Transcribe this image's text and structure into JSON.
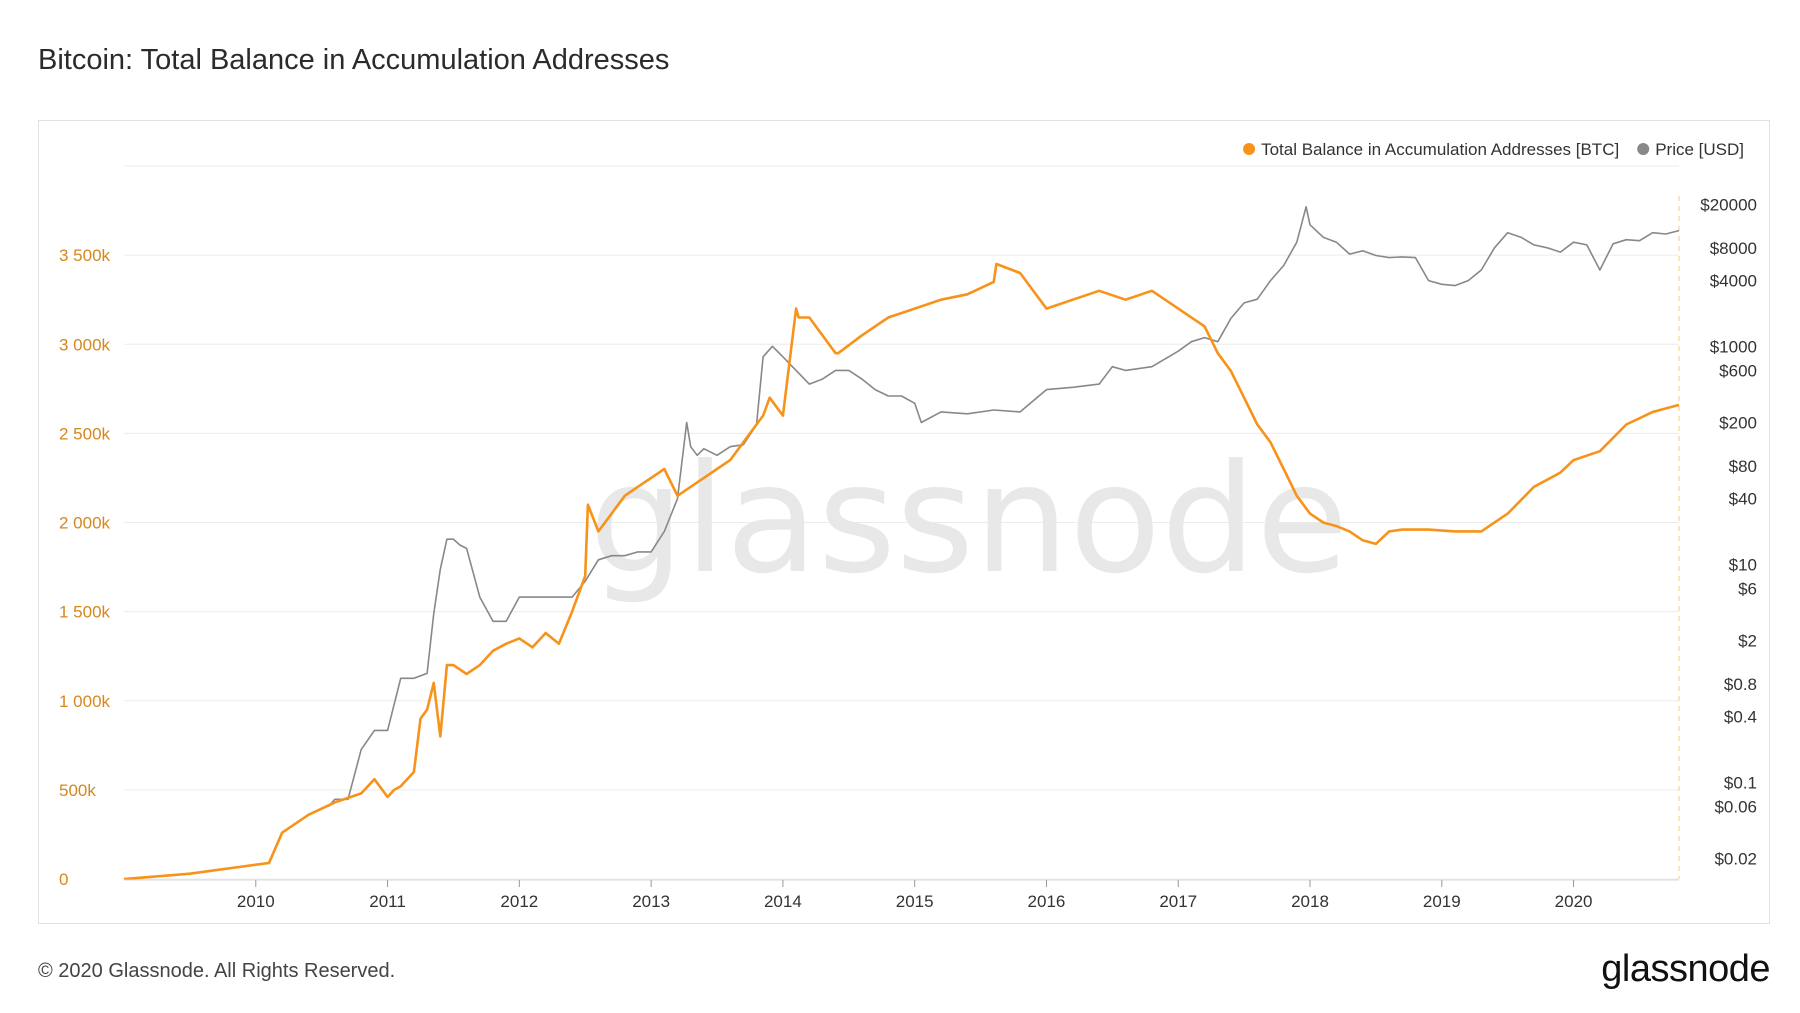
{
  "title": "Bitcoin: Total Balance in Accumulation Addresses",
  "footer": {
    "copyright": "© 2020 Glassnode. All Rights Reserved.",
    "brand": "glassnode"
  },
  "watermark": "glassnode",
  "colors": {
    "balance": "#f7931a",
    "price": "#888888",
    "left_axis": "#d4881e",
    "grid": "#ececec"
  },
  "chart_data": {
    "type": "line",
    "legend": [
      {
        "name": "Total Balance in Accumulation Addresses [BTC]",
        "color": "#f7931a"
      },
      {
        "name": "Price [USD]",
        "color": "#888888"
      }
    ],
    "legend_position": "top-right",
    "grid": true,
    "y_left": {
      "ticks": [
        0,
        500000,
        1000000,
        1500000,
        2000000,
        2500000,
        3000000,
        3500000
      ],
      "tick_labels": [
        "0",
        "500k",
        "1 000k",
        "1 500k",
        "2 000k",
        "2 500k",
        "3 000k",
        "3 500k"
      ],
      "range": [
        0,
        4000000
      ]
    },
    "y_right": {
      "scale": "log",
      "ticks": [
        0.02,
        0.06,
        0.1,
        0.4,
        0.8,
        2,
        6,
        10,
        40,
        80,
        200,
        600,
        1000,
        4000,
        8000,
        20000
      ],
      "tick_labels": [
        "$0.02",
        "$0.06",
        "$0.1",
        "$0.4",
        "$0.8",
        "$2",
        "$6",
        "$10",
        "$40",
        "$80",
        "$200",
        "$600",
        "$1000",
        "$4000",
        "$8000",
        "$20000"
      ]
    },
    "x_axis": {
      "tick_labels": [
        "2010",
        "2011",
        "2012",
        "2013",
        "2014",
        "2015",
        "2016",
        "2017",
        "2018",
        "2019",
        "2020"
      ],
      "range": [
        2009.0,
        2020.8
      ]
    },
    "series": [
      {
        "name": "Total Balance in Accumulation Addresses [BTC]",
        "axis": "left",
        "x": [
          2009.0,
          2009.5,
          2009.9,
          2010.1,
          2010.2,
          2010.4,
          2010.6,
          2010.8,
          2010.9,
          2011.0,
          2011.05,
          2011.1,
          2011.2,
          2011.25,
          2011.3,
          2011.35,
          2011.4,
          2011.45,
          2011.5,
          2011.6,
          2011.7,
          2011.8,
          2011.9,
          2012.0,
          2012.1,
          2012.2,
          2012.3,
          2012.4,
          2012.5,
          2012.52,
          2012.6,
          2012.7,
          2012.8,
          2012.9,
          2013.0,
          2013.1,
          2013.2,
          2013.3,
          2013.4,
          2013.5,
          2013.6,
          2013.7,
          2013.8,
          2013.85,
          2013.9,
          2014.0,
          2014.1,
          2014.12,
          2014.2,
          2014.4,
          2014.42,
          2014.6,
          2014.8,
          2015.0,
          2015.2,
          2015.4,
          2015.6,
          2015.62,
          2015.8,
          2016.0,
          2016.2,
          2016.4,
          2016.6,
          2016.8,
          2017.0,
          2017.2,
          2017.3,
          2017.4,
          2017.5,
          2017.6,
          2017.7,
          2017.8,
          2017.9,
          2018.0,
          2018.1,
          2018.2,
          2018.3,
          2018.4,
          2018.5,
          2018.6,
          2018.7,
          2018.9,
          2019.1,
          2019.3,
          2019.5,
          2019.7,
          2019.9,
          2020.0,
          2020.2,
          2020.4,
          2020.6,
          2020.8
        ],
        "values": [
          0,
          30000,
          70000,
          90000,
          260000,
          360000,
          430000,
          480000,
          560000,
          460000,
          500000,
          520000,
          600000,
          900000,
          950000,
          1100000,
          800000,
          1200000,
          1200000,
          1150000,
          1200000,
          1280000,
          1320000,
          1350000,
          1300000,
          1380000,
          1320000,
          1500000,
          1700000,
          2100000,
          1950000,
          2050000,
          2150000,
          2200000,
          2250000,
          2300000,
          2150000,
          2200000,
          2250000,
          2300000,
          2350000,
          2450000,
          2550000,
          2600000,
          2700000,
          2600000,
          3200000,
          3150000,
          3150000,
          2950000,
          2950000,
          3050000,
          3150000,
          3200000,
          3250000,
          3280000,
          3350000,
          3450000,
          3400000,
          3200000,
          3250000,
          3300000,
          3250000,
          3300000,
          3200000,
          3100000,
          2950000,
          2850000,
          2700000,
          2550000,
          2450000,
          2300000,
          2150000,
          2050000,
          2000000,
          1980000,
          1950000,
          1900000,
          1880000,
          1950000,
          1960000,
          1960000,
          1950000,
          1950000,
          2050000,
          2200000,
          2280000,
          2350000,
          2400000,
          2550000,
          2620000,
          2660000
        ]
      },
      {
        "name": "Price [USD]",
        "axis": "right",
        "x": [
          2010.55,
          2010.6,
          2010.7,
          2010.8,
          2010.9,
          2011.0,
          2011.1,
          2011.2,
          2011.3,
          2011.35,
          2011.4,
          2011.45,
          2011.5,
          2011.55,
          2011.6,
          2011.7,
          2011.8,
          2011.9,
          2012.0,
          2012.1,
          2012.2,
          2012.3,
          2012.4,
          2012.5,
          2012.6,
          2012.7,
          2012.8,
          2012.9,
          2013.0,
          2013.1,
          2013.2,
          2013.27,
          2013.3,
          2013.35,
          2013.4,
          2013.5,
          2013.6,
          2013.7,
          2013.8,
          2013.85,
          2013.92,
          2014.0,
          2014.1,
          2014.2,
          2014.3,
          2014.4,
          2014.5,
          2014.6,
          2014.7,
          2014.8,
          2014.9,
          2015.0,
          2015.05,
          2015.2,
          2015.4,
          2015.6,
          2015.8,
          2016.0,
          2016.2,
          2016.4,
          2016.5,
          2016.6,
          2016.8,
          2017.0,
          2017.1,
          2017.2,
          2017.3,
          2017.4,
          2017.5,
          2017.6,
          2017.7,
          2017.8,
          2017.9,
          2017.97,
          2018.0,
          2018.1,
          2018.2,
          2018.3,
          2018.4,
          2018.5,
          2018.6,
          2018.7,
          2018.8,
          2018.9,
          2019.0,
          2019.1,
          2019.2,
          2019.3,
          2019.4,
          2019.5,
          2019.6,
          2019.7,
          2019.8,
          2019.9,
          2020.0,
          2020.1,
          2020.2,
          2020.3,
          2020.4,
          2020.5,
          2020.6,
          2020.7,
          2020.8
        ],
        "values": [
          0.06,
          0.07,
          0.07,
          0.2,
          0.3,
          0.3,
          0.9,
          0.9,
          1.0,
          3.5,
          9,
          17,
          17,
          15,
          14,
          5,
          3,
          3,
          5,
          5,
          5,
          5,
          5,
          7,
          11,
          12,
          12,
          13,
          13,
          20,
          40,
          200,
          120,
          100,
          115,
          100,
          120,
          125,
          190,
          800,
          1000,
          800,
          600,
          450,
          500,
          600,
          600,
          500,
          400,
          350,
          350,
          300,
          200,
          250,
          240,
          260,
          250,
          400,
          420,
          450,
          650,
          600,
          650,
          900,
          1100,
          1200,
          1100,
          1800,
          2500,
          2700,
          4000,
          5500,
          9000,
          19000,
          13000,
          10000,
          9000,
          7000,
          7500,
          6800,
          6500,
          6600,
          6500,
          4000,
          3700,
          3600,
          4000,
          5000,
          8000,
          11000,
          10000,
          8500,
          8000,
          7300,
          9000,
          8500,
          5000,
          8700,
          9500,
          9300,
          11000,
          10700,
          11500
        ]
      }
    ]
  }
}
